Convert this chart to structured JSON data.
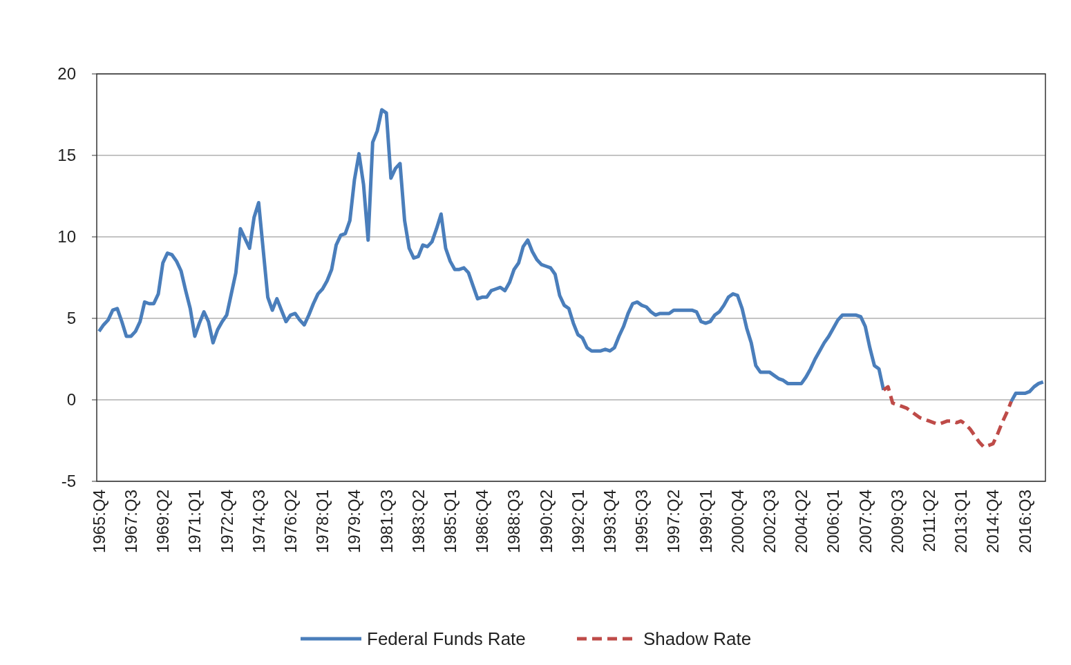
{
  "chart_data": {
    "type": "line",
    "categories": [
      "1965:Q4",
      null,
      null,
      null,
      null,
      null,
      null,
      "1967:Q3",
      null,
      null,
      null,
      null,
      null,
      null,
      "1969:Q2",
      null,
      null,
      null,
      null,
      null,
      null,
      "1971:Q1",
      null,
      null,
      null,
      null,
      null,
      null,
      "1972:Q4",
      null,
      null,
      null,
      null,
      null,
      null,
      "1974:Q3",
      null,
      null,
      null,
      null,
      null,
      null,
      "1976:Q2",
      null,
      null,
      null,
      null,
      null,
      null,
      "1978:Q1",
      null,
      null,
      null,
      null,
      null,
      null,
      "1979:Q4",
      null,
      null,
      null,
      null,
      null,
      null,
      "1981:Q3",
      null,
      null,
      null,
      null,
      null,
      null,
      "1983:Q2",
      null,
      null,
      null,
      null,
      null,
      null,
      "1985:Q1",
      null,
      null,
      null,
      null,
      null,
      null,
      "1986:Q4",
      null,
      null,
      null,
      null,
      null,
      null,
      "1988:Q3",
      null,
      null,
      null,
      null,
      null,
      null,
      "1990:Q2",
      null,
      null,
      null,
      null,
      null,
      null,
      "1992:Q1",
      null,
      null,
      null,
      null,
      null,
      null,
      "1993:Q4",
      null,
      null,
      null,
      null,
      null,
      null,
      "1995:Q3",
      null,
      null,
      null,
      null,
      null,
      null,
      "1997:Q2",
      null,
      null,
      null,
      null,
      null,
      null,
      "1999:Q1",
      null,
      null,
      null,
      null,
      null,
      null,
      "2000:Q4",
      null,
      null,
      null,
      null,
      null,
      null,
      "2002:Q3",
      null,
      null,
      null,
      null,
      null,
      null,
      "2004:Q2",
      null,
      null,
      null,
      null,
      null,
      null,
      "2006:Q1",
      null,
      null,
      null,
      null,
      null,
      null,
      "2007:Q4",
      null,
      null,
      null,
      null,
      null,
      null,
      "2009:Q3",
      null,
      null,
      null,
      null,
      null,
      null,
      "2011:Q2",
      null,
      null,
      null,
      null,
      null,
      null,
      "2013:Q1",
      null,
      null,
      null,
      null,
      null,
      null,
      "2014:Q4",
      null,
      null,
      null,
      null,
      null,
      null,
      "2016:Q3",
      null,
      null,
      null,
      null
    ],
    "series": [
      {
        "name": "Federal Funds Rate",
        "color": "#4a7ebb",
        "line_style": "solid",
        "values": [
          4.2,
          4.6,
          4.9,
          5.5,
          5.6,
          4.8,
          3.9,
          3.9,
          4.2,
          4.8,
          6.0,
          5.9,
          5.9,
          6.5,
          8.4,
          9.0,
          8.9,
          8.5,
          7.9,
          6.7,
          5.6,
          3.9,
          4.7,
          5.4,
          4.8,
          3.5,
          4.3,
          4.8,
          5.2,
          6.5,
          7.8,
          10.5,
          9.9,
          9.3,
          11.2,
          12.1,
          9.2,
          6.3,
          5.5,
          6.2,
          5.5,
          4.8,
          5.2,
          5.3,
          4.9,
          4.6,
          5.2,
          5.9,
          6.5,
          6.8,
          7.3,
          8.0,
          9.5,
          10.1,
          10.2,
          11.0,
          13.5,
          15.1,
          13.2,
          9.8,
          15.8,
          16.5,
          17.8,
          17.6,
          13.6,
          14.2,
          14.5,
          11.0,
          9.3,
          8.7,
          8.8,
          9.5,
          9.4,
          9.7,
          10.5,
          11.4,
          9.3,
          8.5,
          8.0,
          8.0,
          8.1,
          7.8,
          7.0,
          6.2,
          6.3,
          6.3,
          6.7,
          6.8,
          6.9,
          6.7,
          7.2,
          8.0,
          8.4,
          9.4,
          9.8,
          9.1,
          8.6,
          8.3,
          8.2,
          8.1,
          7.7,
          6.4,
          5.8,
          5.6,
          4.7,
          4.0,
          3.8,
          3.2,
          3.0,
          3.0,
          3.0,
          3.1,
          3.0,
          3.2,
          3.9,
          4.5,
          5.3,
          5.9,
          6.0,
          5.8,
          5.7,
          5.4,
          5.2,
          5.3,
          5.3,
          5.3,
          5.5,
          5.5,
          5.5,
          5.5,
          5.5,
          5.4,
          4.8,
          4.7,
          4.8,
          5.2,
          5.4,
          5.8,
          6.3,
          6.5,
          6.4,
          5.6,
          4.4,
          3.5,
          2.1,
          1.7,
          1.7,
          1.7,
          1.5,
          1.3,
          1.2,
          1.0,
          1.0,
          1.0,
          1.0,
          1.4,
          1.9,
          2.5,
          3.0,
          3.5,
          3.9,
          4.4,
          4.9,
          5.2,
          5.2,
          5.2,
          5.2,
          5.1,
          4.5,
          3.2,
          2.1,
          1.9,
          0.6,
          null,
          null,
          null,
          null,
          null,
          null,
          null,
          null,
          null,
          null,
          null,
          null,
          null,
          null,
          null,
          null,
          null,
          null,
          null,
          null,
          null,
          null,
          null,
          null,
          null,
          null,
          null,
          -0.1,
          0.4,
          0.4,
          0.4,
          0.5,
          0.8,
          1.0,
          1.1
        ]
      },
      {
        "name": "Shadow Rate",
        "color": "#be4b48",
        "line_style": "dashed",
        "values": [
          null,
          null,
          null,
          null,
          null,
          null,
          null,
          null,
          null,
          null,
          null,
          null,
          null,
          null,
          null,
          null,
          null,
          null,
          null,
          null,
          null,
          null,
          null,
          null,
          null,
          null,
          null,
          null,
          null,
          null,
          null,
          null,
          null,
          null,
          null,
          null,
          null,
          null,
          null,
          null,
          null,
          null,
          null,
          null,
          null,
          null,
          null,
          null,
          null,
          null,
          null,
          null,
          null,
          null,
          null,
          null,
          null,
          null,
          null,
          null,
          null,
          null,
          null,
          null,
          null,
          null,
          null,
          null,
          null,
          null,
          null,
          null,
          null,
          null,
          null,
          null,
          null,
          null,
          null,
          null,
          null,
          null,
          null,
          null,
          null,
          null,
          null,
          null,
          null,
          null,
          null,
          null,
          null,
          null,
          null,
          null,
          null,
          null,
          null,
          null,
          null,
          null,
          null,
          null,
          null,
          null,
          null,
          null,
          null,
          null,
          null,
          null,
          null,
          null,
          null,
          null,
          null,
          null,
          null,
          null,
          null,
          null,
          null,
          null,
          null,
          null,
          null,
          null,
          null,
          null,
          null,
          null,
          null,
          null,
          null,
          null,
          null,
          null,
          null,
          null,
          null,
          null,
          null,
          null,
          null,
          null,
          null,
          null,
          null,
          null,
          null,
          null,
          null,
          null,
          null,
          null,
          null,
          null,
          null,
          null,
          null,
          null,
          null,
          null,
          null,
          null,
          null,
          null,
          null,
          null,
          null,
          null,
          0.6,
          0.8,
          -0.2,
          -0.3,
          -0.4,
          -0.5,
          -0.7,
          -0.9,
          -1.1,
          -1.2,
          -1.3,
          -1.4,
          -1.5,
          -1.4,
          -1.3,
          -1.3,
          -1.4,
          -1.3,
          -1.5,
          -1.8,
          -2.2,
          -2.6,
          -2.9,
          -2.8,
          -2.7,
          -2.1,
          -1.4,
          -0.8,
          -0.1,
          null,
          null,
          null,
          null,
          null,
          null,
          null
        ]
      }
    ],
    "ylim": [
      -5,
      20
    ],
    "yticks": [
      -5,
      0,
      5,
      10,
      15,
      20
    ],
    "grid": "y",
    "legend": "bottom"
  }
}
